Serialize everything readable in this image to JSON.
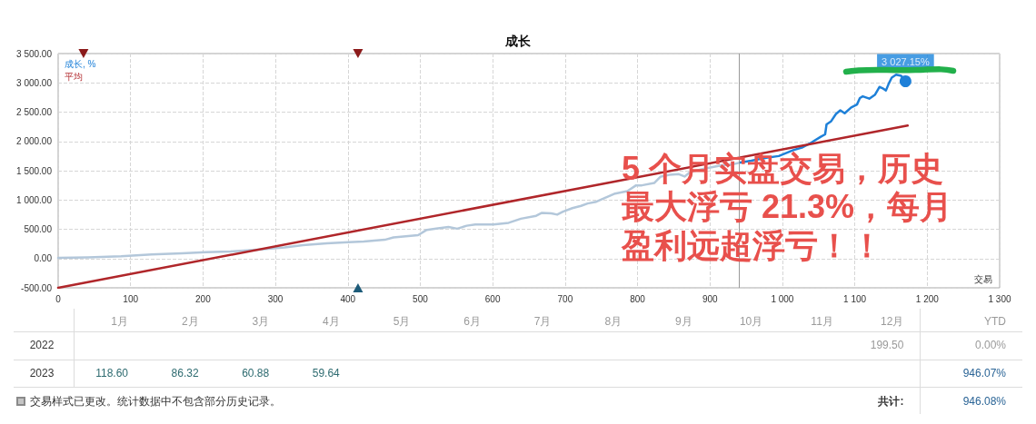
{
  "chart_data": [
    {
      "type": "line",
      "title": "成长",
      "xlabel": "交易",
      "legend": "top left",
      "grid": true,
      "marker": "none",
      "line_style": "solid",
      "xlim": [
        0,
        1300
      ],
      "xticks": [
        0,
        100,
        200,
        300,
        400,
        500,
        600,
        700,
        800,
        900,
        {
          "value": 1000,
          "label": "1 000"
        },
        {
          "value": 1100,
          "label": "1 100"
        },
        {
          "value": 1200,
          "label": "1 200"
        },
        {
          "value": 1300,
          "label": "1 300"
        }
      ],
      "ylim": [
        -500,
        3500
      ],
      "yticks": [
        {
          "value": -500,
          "label": "-500.00"
        },
        {
          "value": 0,
          "label": "0.00"
        },
        {
          "value": 500,
          "label": "500.00"
        },
        {
          "value": 1000,
          "label": "1 000.00"
        },
        {
          "value": 1500,
          "label": "1 500.00"
        },
        {
          "value": 2000,
          "label": "2 000.00"
        },
        {
          "value": 2500,
          "label": "2 500.00"
        },
        {
          "value": 3000,
          "label": "3 000.00"
        },
        {
          "value": 3500,
          "label": "3 500.00"
        }
      ],
      "series": [
        {
          "color": "#b3c7da",
          "x": [
            0,
            41,
            87,
            129,
            171,
            204,
            238,
            275,
            313,
            338,
            371,
            401,
            422,
            451,
            463,
            497,
            509,
            522,
            539,
            551,
            564,
            576,
            601,
            622,
            639,
            660,
            668,
            681,
            689,
            697,
            710,
            722,
            731,
            743,
            756,
            769,
            786,
            798,
            806,
            823,
            832,
            844,
            857,
            865,
            873,
            894,
            915,
            932,
            942
          ],
          "values": [
            10,
            20,
            40,
            70,
            90,
            110,
            120,
            150,
            190,
            230,
            260,
            280,
            290,
            320,
            360,
            400,
            490,
            510,
            540,
            510,
            560,
            580,
            580,
            610,
            680,
            730,
            780,
            770,
            750,
            800,
            860,
            900,
            940,
            970,
            1040,
            1110,
            1150,
            1250,
            1250,
            1290,
            1400,
            1430,
            1440,
            1400,
            1480,
            1540,
            1590,
            1610,
            1640
          ]
        },
        {
          "name": "成长, %",
          "color": "#1e80d8",
          "x": [
            942,
            957,
            978,
            995,
            1015,
            1028,
            1040,
            1053,
            1059,
            1061,
            1067,
            1074,
            1080,
            1086,
            1095,
            1103,
            1107,
            1111,
            1120,
            1128,
            1134,
            1138,
            1143,
            1147,
            1151,
            1157,
            1164,
            1170
          ],
          "values": [
            1640,
            1670,
            1720,
            1750,
            1850,
            1900,
            1980,
            2080,
            2120,
            2290,
            2340,
            2470,
            2530,
            2480,
            2580,
            2630,
            2740,
            2770,
            2730,
            2800,
            2930,
            2910,
            2870,
            2990,
            3090,
            3140,
            3120,
            3027.15
          ]
        },
        {
          "name": "平均",
          "color": "#b0262a",
          "x": [
            0,
            1173
          ],
          "values": [
            -500,
            2270
          ]
        },
        {
          "type": "scatter",
          "marker": "circle",
          "color": "#1e80d8",
          "x": [
            1170
          ],
          "values": [
            3027.15
          ]
        },
        {
          "type": "scatter",
          "marker": "triangle",
          "color": "#8b1a1a",
          "x": [
            35,
            414
          ],
          "values": [
            3500,
            3500
          ]
        },
        {
          "type": "scatter",
          "marker": "triangle",
          "color": "#1d5b79",
          "x": [
            414
          ],
          "values": [
            -500
          ]
        }
      ],
      "ref_lines": [
        {
          "axis": "x",
          "value": 940,
          "color": "#9a9a9a"
        }
      ],
      "annotations": [
        "5 个月实盘交易，历史最大浮亏 21.3%，每月盈利远超浮亏！！",
        {
          "text": "3 027.15%",
          "x": 1170,
          "y": 3027.15
        }
      ]
    },
    {
      "type": "heatmap",
      "categories": [
        "1月",
        "2月",
        "3月",
        "4月",
        "5月",
        "6月",
        "7月",
        "8月",
        "9月",
        "10月",
        "11月",
        "12月",
        "YTD"
      ],
      "y_categories": [
        "2022",
        "2023"
      ],
      "cells": [
        [
          null,
          null,
          null,
          null,
          null,
          null,
          null,
          null,
          null,
          null,
          null,
          199.5,
          0.0
        ],
        [
          118.6,
          86.32,
          60.88,
          59.64,
          null,
          null,
          null,
          null,
          null,
          null,
          null,
          null,
          946.07
        ]
      ],
      "cell_labels": [
        [
          null,
          null,
          null,
          null,
          null,
          null,
          null,
          null,
          null,
          null,
          null,
          "199.50",
          "0.00%"
        ],
        [
          "118.60",
          "86.32",
          "60.88",
          "59.64",
          null,
          null,
          null,
          null,
          null,
          null,
          null,
          null,
          "946.07%"
        ]
      ],
      "annotations": [
        "交易样式已更改。统计数据中不包含部分历史记录。",
        "共计:",
        "946.08%"
      ]
    }
  ]
}
